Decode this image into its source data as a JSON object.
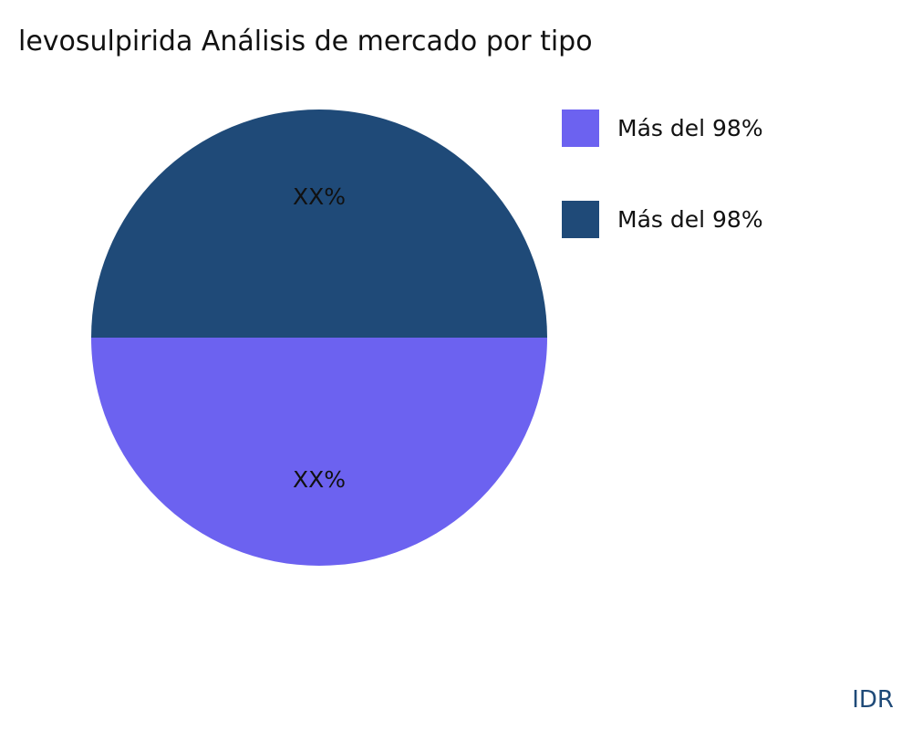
{
  "chart_data": {
    "type": "pie",
    "title": "levosulpirida Análisis de mercado por tipo",
    "slices": [
      {
        "name": "Más del 98%",
        "value": 50,
        "label": "XX%",
        "color": "#6c62f0"
      },
      {
        "name": "Más del 98%",
        "value": 50,
        "label": "XX%",
        "color": "#1f4a78"
      }
    ],
    "legend_position": "right"
  },
  "brand": "IDR"
}
